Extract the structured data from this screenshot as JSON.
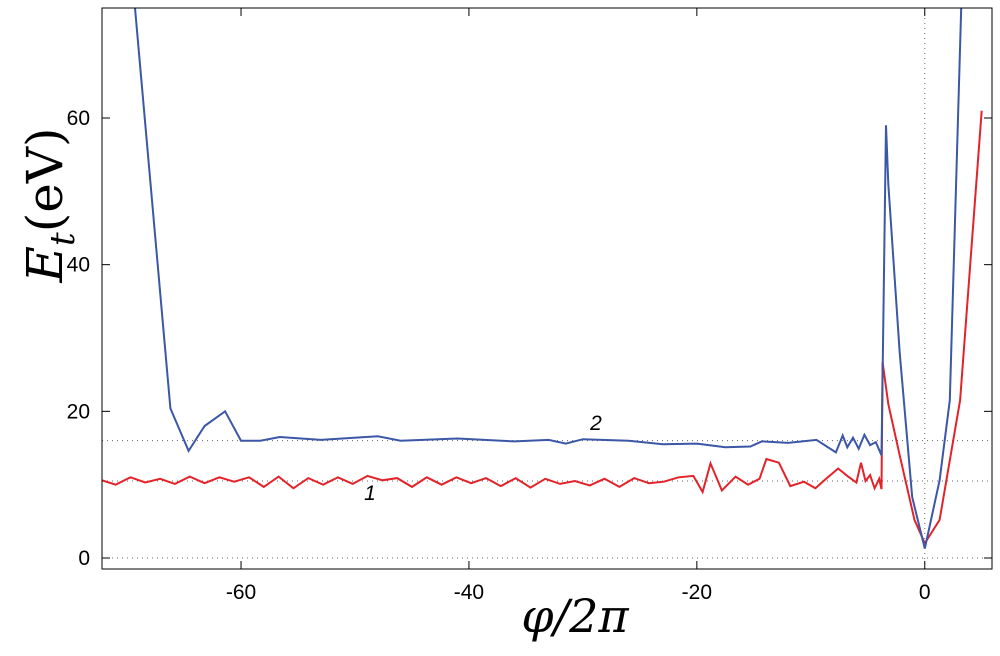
{
  "chart_data": {
    "type": "line",
    "xlabel": "φ/2π",
    "ylabel": {
      "symbol": "E",
      "subscript": "t",
      "unit": "(eV)"
    },
    "xlim": [
      -72.2,
      5.9
    ],
    "ylim": [
      -1.5,
      75
    ],
    "xticks": [
      -60,
      -40,
      -20,
      0
    ],
    "yticks": [
      0,
      20,
      40,
      60
    ],
    "hlines": [
      16,
      10.5,
      0
    ],
    "vlines": [
      0
    ],
    "series": [
      {
        "name": "1",
        "color": "#e3232a",
        "x": [
          -72.2,
          -71,
          -69.7,
          -68.4,
          -67.1,
          -65.8,
          -64.5,
          -63.2,
          -61.9,
          -60.6,
          -59.3,
          -58,
          -56.7,
          -55.4,
          -54.1,
          -52.8,
          -51.5,
          -50.2,
          -48.9,
          -47.6,
          -46.3,
          -45,
          -43.7,
          -42.4,
          -41.1,
          -39.8,
          -38.5,
          -37.2,
          -35.9,
          -34.6,
          -33.3,
          -32,
          -30.7,
          -29.4,
          -28.1,
          -26.8,
          -25.5,
          -24.2,
          -22.9,
          -21.6,
          -20.3,
          -19.5,
          -18.8,
          -17.8,
          -16.6,
          -15.5,
          -14.5,
          -13.9,
          -12.8,
          -11.8,
          -10.6,
          -9.6,
          -8.6,
          -7.6,
          -6.8,
          -6.0,
          -5.6,
          -5.2,
          -4.8,
          -4.4,
          -4.0,
          -3.8,
          -3.7,
          -3.2,
          -2.2,
          -0.9,
          0,
          1.3,
          3.1,
          5
        ],
        "values": [
          10.6,
          10.0,
          11.0,
          10.3,
          10.8,
          10.1,
          11.1,
          10.2,
          11.0,
          10.4,
          11.0,
          9.7,
          11.1,
          9.5,
          10.9,
          10.0,
          11.0,
          10.1,
          11.2,
          10.6,
          10.9,
          9.7,
          11.0,
          10.0,
          11.0,
          10.2,
          10.9,
          9.8,
          10.9,
          9.6,
          10.8,
          10.1,
          10.5,
          9.9,
          10.8,
          9.7,
          10.9,
          10.2,
          10.4,
          11.0,
          11.2,
          9.0,
          12.9,
          9.2,
          11.1,
          10.0,
          10.8,
          13.5,
          13.0,
          9.8,
          10.4,
          9.5,
          10.9,
          12.2,
          11.2,
          10.3,
          13.0,
          10.5,
          11.3,
          9.5,
          10.8,
          9.4,
          26.7,
          21,
          14,
          5.2,
          2.0,
          5.2,
          21.5,
          61
        ]
      },
      {
        "name": "2",
        "color": "#3b57a6",
        "x": [
          -69.3,
          -66.2,
          -64.6,
          -63.2,
          -61.4,
          -60,
          -58.3,
          -56.6,
          -53,
          -48,
          -46,
          -41,
          -36,
          -33,
          -31.5,
          -30,
          -26,
          -23,
          -20,
          -17.5,
          -15.3,
          -14.3,
          -12,
          -9.5,
          -7.8,
          -7.2,
          -6.8,
          -6.3,
          -5.8,
          -5.3,
          -4.8,
          -4.3,
          -3.8,
          -3.4,
          -3.2,
          -2.2,
          -1.1,
          0,
          1.3,
          2.2,
          3.2
        ],
        "values": [
          75,
          20.4,
          14.6,
          18,
          20,
          16,
          16,
          16.5,
          16.1,
          16.6,
          16.0,
          16.3,
          15.9,
          16.1,
          15.6,
          16.2,
          16.0,
          15.5,
          15.6,
          15.1,
          15.2,
          15.9,
          15.7,
          16.1,
          14.4,
          16.7,
          15.1,
          16.4,
          14.9,
          16.8,
          15.4,
          15.8,
          14.0,
          59,
          51,
          28,
          8.3,
          1.3,
          10.6,
          21.5,
          75
        ]
      }
    ]
  }
}
